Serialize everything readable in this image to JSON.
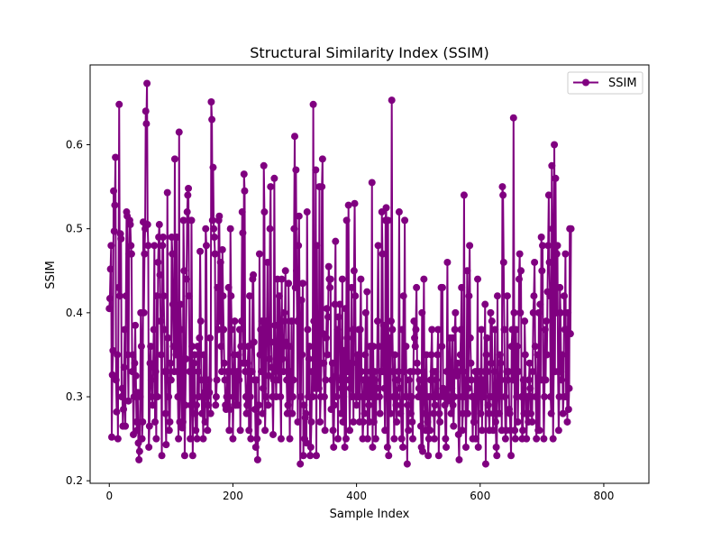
{
  "chart_data": {
    "type": "line",
    "title": "Structural Similarity Index (SSIM)",
    "xlabel": "Sample Index",
    "ylabel": "SSIM",
    "xlim": [
      -31,
      873
    ],
    "ylim": [
      0.197,
      0.695
    ],
    "xticks": [
      0,
      200,
      400,
      600,
      800
    ],
    "yticks": [
      0.2,
      0.3,
      0.4,
      0.5,
      0.6
    ],
    "x_tick_labels": [
      "0",
      "200",
      "400",
      "600",
      "800"
    ],
    "y_tick_labels": [
      "0.2",
      "0.3",
      "0.4",
      "0.5",
      "0.6"
    ],
    "grid": false,
    "legend_position": "upper right",
    "marker": "circle",
    "color": "#800080",
    "series": [
      {
        "name": "SSIM",
        "x_start": 0,
        "x_step": 1,
        "values": [
          0.405,
          0.417,
          0.452,
          0.48,
          0.252,
          0.326,
          0.355,
          0.545,
          0.497,
          0.528,
          0.585,
          0.32,
          0.282,
          0.35,
          0.25,
          0.43,
          0.648,
          0.42,
          0.494,
          0.488,
          0.3,
          0.31,
          0.265,
          0.285,
          0.335,
          0.38,
          0.265,
          0.42,
          0.52,
          0.515,
          0.35,
          0.295,
          0.47,
          0.51,
          0.505,
          0.48,
          0.47,
          0.33,
          0.35,
          0.255,
          0.3,
          0.34,
          0.385,
          0.325,
          0.27,
          0.26,
          0.305,
          0.245,
          0.225,
          0.235,
          0.3,
          0.4,
          0.36,
          0.25,
          0.27,
          0.508,
          0.4,
          0.47,
          0.5,
          0.64,
          0.625,
          0.673,
          0.505,
          0.48,
          0.24,
          0.265,
          0.34,
          0.36,
          0.32,
          0.3,
          0.29,
          0.335,
          0.38,
          0.48,
          0.27,
          0.33,
          0.25,
          0.42,
          0.3,
          0.46,
          0.49,
          0.505,
          0.445,
          0.39,
          0.35,
          0.23,
          0.48,
          0.49,
          0.42,
          0.38,
          0.33,
          0.28,
          0.243,
          0.33,
          0.543,
          0.37,
          0.3,
          0.26,
          0.27,
          0.34,
          0.32,
          0.49,
          0.47,
          0.41,
          0.36,
          0.33,
          0.583,
          0.4,
          0.35,
          0.49,
          0.33,
          0.3,
          0.25,
          0.615,
          0.27,
          0.41,
          0.38,
          0.3,
          0.263,
          0.27,
          0.51,
          0.45,
          0.23,
          0.29,
          0.345,
          0.44,
          0.52,
          0.54,
          0.548,
          0.42,
          0.33,
          0.25,
          0.29,
          0.51,
          0.36,
          0.23,
          0.3,
          0.34,
          0.35,
          0.28,
          0.26,
          0.29,
          0.25,
          0.36,
          0.33,
          0.3,
          0.37,
          0.473,
          0.39,
          0.32,
          0.28,
          0.3,
          0.25,
          0.35,
          0.305,
          0.27,
          0.5,
          0.48,
          0.3,
          0.26,
          0.29,
          0.32,
          0.305,
          0.37,
          0.28,
          0.651,
          0.63,
          0.51,
          0.573,
          0.5,
          0.49,
          0.47,
          0.29,
          0.3,
          0.32,
          0.43,
          0.38,
          0.51,
          0.515,
          0.39,
          0.46,
          0.36,
          0.33,
          0.475,
          0.42,
          0.38,
          0.34,
          0.32,
          0.29,
          0.285,
          0.3,
          0.33,
          0.29,
          0.43,
          0.26,
          0.285,
          0.5,
          0.42,
          0.38,
          0.33,
          0.25,
          0.3,
          0.35,
          0.39,
          0.29,
          0.29,
          0.32,
          0.33,
          0.29,
          0.35,
          0.32,
          0.38,
          0.26,
          0.36,
          0.39,
          0.52,
          0.495,
          0.34,
          0.565,
          0.545,
          0.33,
          0.3,
          0.28,
          0.29,
          0.34,
          0.36,
          0.26,
          0.42,
          0.3,
          0.25,
          0.33,
          0.33,
          0.44,
          0.445,
          0.365,
          0.32,
          0.285,
          0.24,
          0.32,
          0.25,
          0.225,
          0.27,
          0.29,
          0.47,
          0.35,
          0.38,
          0.33,
          0.39,
          0.28,
          0.31,
          0.575,
          0.52,
          0.26,
          0.3,
          0.39,
          0.38,
          0.46,
          0.29,
          0.325,
          0.345,
          0.5,
          0.55,
          0.365,
          0.335,
          0.3,
          0.255,
          0.32,
          0.56,
          0.385,
          0.33,
          0.3,
          0.35,
          0.44,
          0.345,
          0.32,
          0.42,
          0.39,
          0.3,
          0.25,
          0.44,
          0.345,
          0.36,
          0.33,
          0.4,
          0.39,
          0.45,
          0.365,
          0.32,
          0.28,
          0.29,
          0.435,
          0.36,
          0.25,
          0.33,
          0.3,
          0.39,
          0.28,
          0.3,
          0.32,
          0.5,
          0.61,
          0.43,
          0.57,
          0.45,
          0.39,
          0.27,
          0.48,
          0.515,
          0.395,
          0.22,
          0.3,
          0.415,
          0.35,
          0.435,
          0.23,
          0.29,
          0.25,
          0.275,
          0.28,
          0.245,
          0.52,
          0.38,
          0.3,
          0.345,
          0.36,
          0.23,
          0.24,
          0.27,
          0.33,
          0.3,
          0.648,
          0.39,
          0.31,
          0.33,
          0.57,
          0.23,
          0.48,
          0.31,
          0.33,
          0.31,
          0.55,
          0.27,
          0.3,
          0.34,
          0.55,
          0.583,
          0.375,
          0.34,
          0.3,
          0.26,
          0.32,
          0.37,
          0.405,
          0.35,
          0.395,
          0.455,
          0.44,
          0.43,
          0.44,
          0.285,
          0.32,
          0.34,
          0.26,
          0.24,
          0.29,
          0.41,
          0.485,
          0.325,
          0.3,
          0.38,
          0.25,
          0.395,
          0.36,
          0.41,
          0.32,
          0.28,
          0.31,
          0.44,
          0.27,
          0.3,
          0.355,
          0.24,
          0.405,
          0.25,
          0.51,
          0.37,
          0.33,
          0.528,
          0.32,
          0.26,
          0.31,
          0.34,
          0.43,
          0.3,
          0.38,
          0.27,
          0.45,
          0.53,
          0.42,
          0.3,
          0.29,
          0.34,
          0.35,
          0.3,
          0.38,
          0.27,
          0.38,
          0.44,
          0.33,
          0.3,
          0.25,
          0.27,
          0.32,
          0.28,
          0.35,
          0.4,
          0.3,
          0.425,
          0.25,
          0.32,
          0.29,
          0.27,
          0.36,
          0.33,
          0.3,
          0.555,
          0.24,
          0.36,
          0.27,
          0.33,
          0.32,
          0.25,
          0.3,
          0.31,
          0.39,
          0.48,
          0.36,
          0.3,
          0.28,
          0.33,
          0.33,
          0.52,
          0.47,
          0.33,
          0.385,
          0.31,
          0.26,
          0.51,
          0.525,
          0.3,
          0.24,
          0.51,
          0.23,
          0.37,
          0.3,
          0.28,
          0.39,
          0.653,
          0.38,
          0.33,
          0.3,
          0.25,
          0.35,
          0.32,
          0.29,
          0.27,
          0.3,
          0.32,
          0.33,
          0.52,
          0.31,
          0.28,
          0.29,
          0.25,
          0.38,
          0.24,
          0.42,
          0.33,
          0.51,
          0.3,
          0.36,
          0.3,
          0.22,
          0.29,
          0.26,
          0.32,
          0.3,
          0.33,
          0.28,
          0.3,
          0.27,
          0.25,
          0.33,
          0.39,
          0.37,
          0.36,
          0.38,
          0.43,
          0.34,
          0.33,
          0.3,
          0.31,
          0.32,
          0.3,
          0.265,
          0.24,
          0.4,
          0.235,
          0.33,
          0.44,
          0.3,
          0.28,
          0.26,
          0.35,
          0.3,
          0.27,
          0.23,
          0.25,
          0.3,
          0.26,
          0.32,
          0.35,
          0.38,
          0.3,
          0.33,
          0.28,
          0.25,
          0.29,
          0.33,
          0.32,
          0.3,
          0.35,
          0.38,
          0.23,
          0.28,
          0.27,
          0.3,
          0.43,
          0.36,
          0.43,
          0.31,
          0.305,
          0.3,
          0.29,
          0.25,
          0.24,
          0.33,
          0.46,
          0.295,
          0.3,
          0.333,
          0.37,
          0.33,
          0.28,
          0.31,
          0.37,
          0.29,
          0.265,
          0.3,
          0.38,
          0.4,
          0.33,
          0.325,
          0.34,
          0.33,
          0.255,
          0.225,
          0.3,
          0.35,
          0.38,
          0.43,
          0.26,
          0.28,
          0.33,
          0.54,
          0.3,
          0.32,
          0.24,
          0.3,
          0.45,
          0.28,
          0.31,
          0.42,
          0.48,
          0.37,
          0.34,
          0.32,
          0.3,
          0.25,
          0.3,
          0.27,
          0.3,
          0.33,
          0.25,
          0.3,
          0.33,
          0.44,
          0.24,
          0.32,
          0.3,
          0.33,
          0.28,
          0.38,
          0.26,
          0.32,
          0.3,
          0.3,
          0.33,
          0.41,
          0.22,
          0.35,
          0.37,
          0.33,
          0.29,
          0.28,
          0.26,
          0.3,
          0.4,
          0.34,
          0.39,
          0.3,
          0.26,
          0.28,
          0.33,
          0.38,
          0.27,
          0.24,
          0.23,
          0.42,
          0.3,
          0.3,
          0.28,
          0.35,
          0.34,
          0.32,
          0.26,
          0.55,
          0.54,
          0.46,
          0.38,
          0.3,
          0.25,
          0.26,
          0.33,
          0.42,
          0.32,
          0.33,
          0.285,
          0.28,
          0.26,
          0.23,
          0.36,
          0.38,
          0.32,
          0.632,
          0.4,
          0.26,
          0.25,
          0.38,
          0.3,
          0.36,
          0.27,
          0.33,
          0.44,
          0.47,
          0.4,
          0.45,
          0.3,
          0.25,
          0.26,
          0.32,
          0.28,
          0.39,
          0.35,
          0.3,
          0.25,
          0.28,
          0.3,
          0.27,
          0.32,
          0.34,
          0.31,
          0.28,
          0.3,
          0.27,
          0.33,
          0.4,
          0.42,
          0.46,
          0.36,
          0.3,
          0.25,
          0.3,
          0.35,
          0.26,
          0.4,
          0.26,
          0.41,
          0.32,
          0.49,
          0.45,
          0.48,
          0.32,
          0.25,
          0.3,
          0.38,
          0.32,
          0.39,
          0.35,
          0.425,
          0.48,
          0.54,
          0.46,
          0.42,
          0.3,
          0.28,
          0.575,
          0.5,
          0.25,
          0.33,
          0.6,
          0.33,
          0.56,
          0.4,
          0.47,
          0.48,
          0.33,
          0.26,
          0.3,
          0.43,
          0.4,
          0.33,
          0.32,
          0.35,
          0.28,
          0.3,
          0.42,
          0.38,
          0.47,
          0.3,
          0.38,
          0.27,
          0.4,
          0.285,
          0.31,
          0.5,
          0.375,
          0.5
        ]
      }
    ]
  }
}
